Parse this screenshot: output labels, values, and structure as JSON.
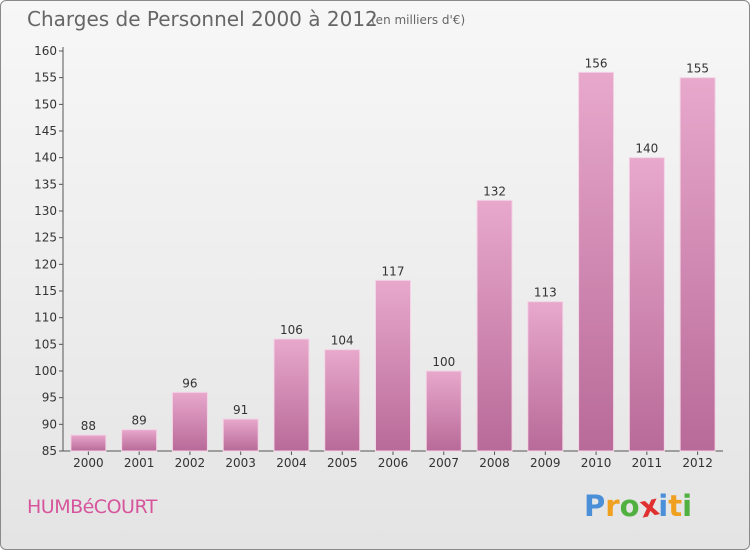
{
  "title": "Charges de Personnel 2000 à 2012",
  "subtitle": "(en milliers d'€)",
  "commune": "HUMBéCOURT",
  "brand": {
    "letters": [
      "P",
      "r",
      "o",
      "x",
      "i",
      "t",
      "i"
    ],
    "colors": [
      "#4a8fd8",
      "#f0a020",
      "#50b040",
      "#e03030",
      "#4a8fd8",
      "#f0a020",
      "#50b040"
    ]
  },
  "colors": {
    "bar": "#d98cb8",
    "bar_top": "#e8a8cc",
    "bar_bottom": "#b86a98"
  },
  "chart_data": {
    "type": "bar",
    "categories": [
      "2000",
      "2001",
      "2002",
      "2003",
      "2004",
      "2005",
      "2006",
      "2007",
      "2008",
      "2009",
      "2010",
      "2011",
      "2012"
    ],
    "values": [
      88,
      89,
      96,
      91,
      106,
      104,
      117,
      100,
      132,
      113,
      156,
      140,
      155
    ],
    "ylim": [
      85,
      160
    ],
    "yticks": [
      85,
      90,
      95,
      100,
      105,
      110,
      115,
      120,
      125,
      130,
      135,
      140,
      145,
      150,
      155,
      160
    ],
    "title": "Charges de Personnel 2000 à 2012",
    "xlabel": "",
    "ylabel": "",
    "grid": false,
    "data_labels": true
  }
}
